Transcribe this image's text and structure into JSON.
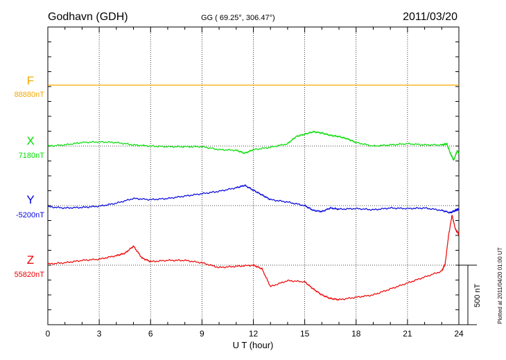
{
  "header": {
    "station": "Godhavn (GDH)",
    "coords": "GG ( 69.25°, 306.47°)",
    "date": "2011/03/20"
  },
  "footer": {
    "plotted_note": "Plotted at 2011/04/20 01:00 UT",
    "scale_label": "500 nT"
  },
  "colors": {
    "F": "#f5a800",
    "X": "#00dd00",
    "Y": "#0000dd",
    "Z": "#ee0000",
    "grid": "#000000"
  },
  "chart_data": {
    "type": "line",
    "xlabel": "U T (hour)",
    "ylabel": "",
    "xlim": [
      0,
      24
    ],
    "x_ticks": [
      "0",
      "3",
      "6",
      "9",
      "12",
      "15",
      "18",
      "21",
      "24"
    ],
    "grid": true,
    "scale_bar_nT": 500,
    "series": [
      {
        "name": "F",
        "baseline_label": "88880nT",
        "baseline_nT": 88880,
        "x": [
          0,
          24
        ],
        "values": [
          0,
          0
        ]
      },
      {
        "name": "X",
        "baseline_label": "7180nT",
        "baseline_nT": 7180,
        "x": [
          0,
          1,
          2,
          3,
          4,
          5,
          6,
          7,
          8,
          9,
          10,
          11,
          11.5,
          12,
          13,
          14,
          14.5,
          15,
          15.5,
          16,
          16.5,
          17,
          17.5,
          18,
          19,
          20,
          21,
          22,
          23,
          23.3,
          23.5,
          23.7,
          23.9,
          24
        ],
        "values": [
          0,
          10,
          30,
          35,
          30,
          10,
          0,
          -5,
          -5,
          -5,
          -30,
          -35,
          -60,
          -30,
          -10,
          20,
          80,
          100,
          120,
          110,
          90,
          80,
          60,
          30,
          0,
          10,
          20,
          10,
          10,
          20,
          -60,
          -120,
          -40,
          -60
        ]
      },
      {
        "name": "Y",
        "baseline_label": "-5200nT",
        "baseline_nT": -5200,
        "x": [
          0,
          1,
          2,
          3,
          4,
          5,
          6,
          7,
          8,
          9,
          10,
          11,
          11.5,
          12,
          12.5,
          13,
          14,
          15,
          15.5,
          16,
          16.5,
          17,
          18,
          19,
          20,
          21,
          22,
          23,
          23.5,
          23.8,
          24
        ],
        "values": [
          -10,
          -20,
          -15,
          -5,
          20,
          60,
          50,
          60,
          80,
          100,
          120,
          150,
          170,
          130,
          90,
          50,
          30,
          0,
          -40,
          -50,
          -20,
          -30,
          -25,
          -35,
          -20,
          -25,
          -20,
          -40,
          -60,
          -40,
          -30
        ]
      },
      {
        "name": "Z",
        "baseline_label": "55820nT",
        "baseline_nT": 55820,
        "x": [
          0,
          1,
          2,
          3,
          4,
          4.5,
          5,
          5.5,
          6,
          7,
          8,
          9,
          10,
          11,
          12,
          12.5,
          13,
          14,
          15,
          15.5,
          16,
          16.5,
          17,
          18,
          19,
          20,
          21,
          22,
          23,
          23.2,
          23.4,
          23.6,
          23.8,
          24
        ],
        "values": [
          10,
          20,
          40,
          50,
          80,
          100,
          160,
          60,
          30,
          40,
          40,
          20,
          -20,
          -10,
          0,
          -30,
          -180,
          -130,
          -140,
          -200,
          -250,
          -280,
          -290,
          -270,
          -250,
          -200,
          -150,
          -100,
          -50,
          10,
          250,
          420,
          300,
          260
        ]
      }
    ]
  }
}
